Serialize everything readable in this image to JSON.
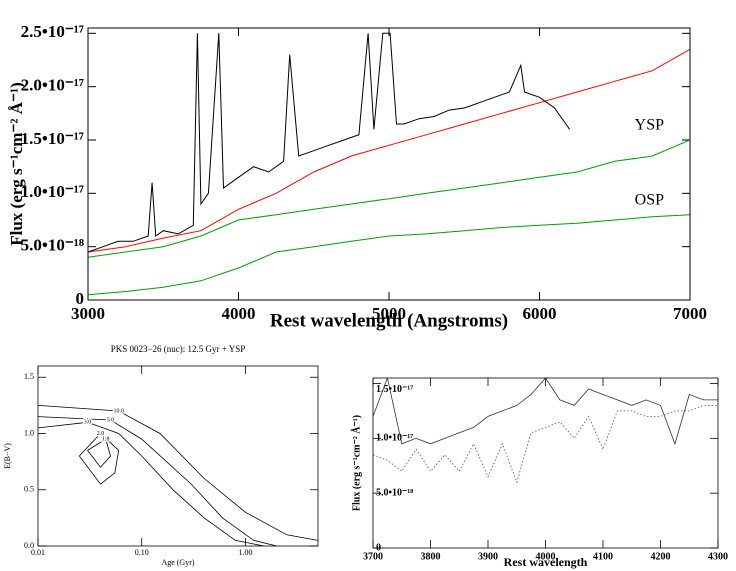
{
  "chart_data": [
    {
      "type": "line",
      "xlabel": "Rest wavelength (Angstroms)",
      "ylabel": "Flux (erg s⁻¹cm⁻² Å⁻¹)",
      "xlim": [
        3000,
        7000
      ],
      "xticks": [
        3000,
        4000,
        5000,
        6000,
        7000
      ],
      "ylim": [
        0,
        2.55e-17
      ],
      "yticks": [
        0,
        {
          "value": 5e-18,
          "label": "5.0•10⁻¹⁸"
        },
        {
          "value": 1e-17,
          "label": "1.0•10⁻¹⁷"
        },
        {
          "value": 1.5e-17,
          "label": "1.5•10⁻¹⁷"
        },
        {
          "value": 2e-17,
          "label": "2.0•10⁻¹⁷"
        },
        {
          "value": 2.5e-17,
          "label": "2.5•10⁻¹⁷"
        }
      ],
      "series_label": "end",
      "series": [
        {
          "color": "#00a000",
          "name": "YSP",
          "x": [
            3000,
            3250,
            3500,
            3750,
            4000,
            4250,
            4500,
            4750,
            5000,
            5250,
            5500,
            5750,
            6000,
            6250,
            6500,
            6750,
            7000
          ],
          "values": [
            4e-18,
            4.5e-18,
            5e-18,
            6e-18,
            7.5e-18,
            8e-18,
            8.5e-18,
            9e-18,
            9.5e-18,
            1e-17,
            1.05e-17,
            1.1e-17,
            1.15e-17,
            1.2e-17,
            1.3e-17,
            1.35e-17,
            1.5e-17
          ]
        },
        {
          "color": "#00a000",
          "name": "OSP",
          "x": [
            3000,
            3250,
            3500,
            3750,
            4000,
            4250,
            4500,
            4750,
            5000,
            5250,
            5500,
            5750,
            6000,
            6250,
            6500,
            6750,
            7000
          ],
          "values": [
            5e-19,
            8e-19,
            1.2e-18,
            1.8e-18,
            3e-18,
            4.5e-18,
            5e-18,
            5.5e-18,
            6e-18,
            6.2e-18,
            6.5e-18,
            6.8e-18,
            7e-18,
            7.2e-18,
            7.5e-18,
            7.8e-18,
            8e-18
          ]
        },
        {
          "color": "#ff0000",
          "x": [
            3000,
            3250,
            3500,
            3750,
            4000,
            4250,
            4500,
            4750,
            5000,
            5250,
            5500,
            5750,
            6000,
            6250,
            6500,
            6750,
            7000
          ],
          "values": [
            4.5e-18,
            5e-18,
            5.8e-18,
            6.5e-18,
            8.5e-18,
            1e-17,
            1.2e-17,
            1.35e-17,
            1.45e-17,
            1.55e-17,
            1.65e-17,
            1.75e-17,
            1.85e-17,
            1.95e-17,
            2.05e-17,
            2.15e-17,
            2.35e-17
          ]
        },
        {
          "color": "#000000",
          "x": [
            3000,
            3100,
            3200,
            3300,
            3400,
            3426,
            3450,
            3500,
            3600,
            3700,
            3727,
            3750,
            3800,
            3869,
            3900,
            4000,
            4100,
            4200,
            4300,
            4340,
            4400,
            4500,
            4600,
            4700,
            4800,
            4861,
            4900,
            4959,
            5007,
            5050,
            5100,
            5200,
            5300,
            5400,
            5500,
            5600,
            5700,
            5800,
            5876,
            5900,
            6000,
            6100,
            6200
          ],
          "values": [
            4.5e-18,
            5e-18,
            5.5e-18,
            5.5e-18,
            6e-18,
            1.1e-17,
            6e-18,
            6.5e-18,
            6.2e-18,
            7e-18,
            2.5e-17,
            9e-18,
            1e-17,
            2.5e-17,
            1.05e-17,
            1.15e-17,
            1.25e-17,
            1.2e-17,
            1.3e-17,
            2.3e-17,
            1.35e-17,
            1.4e-17,
            1.45e-17,
            1.5e-17,
            1.55e-17,
            2.5e-17,
            1.6e-17,
            2.5e-17,
            2.5e-17,
            1.65e-17,
            1.65e-17,
            1.7e-17,
            1.72e-17,
            1.78e-17,
            1.8e-17,
            1.85e-17,
            1.9e-17,
            1.95e-17,
            2.2e-17,
            1.95e-17,
            1.9e-17,
            1.8e-17,
            1.6e-17
          ]
        }
      ]
    },
    {
      "type": "contour",
      "title": "PKS 0023−26 (nuc): 12.5 Gyr + YSP",
      "xlabel": "Age (Gyr)",
      "ylabel": "E(B−V)",
      "xscale": "log",
      "xlim": [
        0.01,
        5
      ],
      "xticks": [
        {
          "value": 0.01,
          "label": "0.01"
        },
        {
          "value": 0.1,
          "label": "0.10"
        },
        {
          "value": 1,
          "label": "1.00"
        }
      ],
      "ylim": [
        0,
        1.6
      ],
      "yticks": [
        {
          "value": 0,
          "label": "0.0"
        },
        0.5,
        {
          "value": 1,
          "label": "1.0"
        },
        1.5
      ],
      "series_label": "inline",
      "series": [
        {
          "color": "#000000",
          "name": "1.8",
          "x": [
            0.03,
            0.045,
            0.05,
            0.04,
            0.03
          ],
          "values": [
            0.85,
            0.95,
            0.8,
            0.7,
            0.85
          ]
        },
        {
          "color": "#000000",
          "name": "2.0",
          "x": [
            0.025,
            0.04,
            0.06,
            0.055,
            0.04,
            0.025
          ],
          "values": [
            0.8,
            1.0,
            0.85,
            0.65,
            0.55,
            0.8
          ]
        },
        {
          "color": "#000000",
          "name": "3.0",
          "x": [
            0.01,
            0.03,
            0.06,
            0.1,
            0.2,
            0.4,
            0.8,
            1.5
          ],
          "values": [
            1.05,
            1.1,
            1.0,
            0.8,
            0.5,
            0.25,
            0.05,
            0.0
          ]
        },
        {
          "color": "#000000",
          "name": "5.0",
          "x": [
            0.01,
            0.05,
            0.1,
            0.3,
            0.6,
            1.2,
            2.0
          ],
          "values": [
            1.15,
            1.12,
            0.95,
            0.55,
            0.25,
            0.05,
            0.0
          ]
        },
        {
          "color": "#000000",
          "name": "10.0",
          "x": [
            0.01,
            0.06,
            0.15,
            0.4,
            1.0,
            2.5,
            5
          ],
          "values": [
            1.25,
            1.2,
            1.0,
            0.6,
            0.3,
            0.1,
            0.05
          ]
        }
      ]
    },
    {
      "type": "line",
      "xlabel": "Rest wavelength",
      "ylabel": "Flux (erg s⁻¹cm⁻² Å⁻¹)",
      "xlim": [
        3700,
        4300
      ],
      "xticks": [
        3700,
        3800,
        3900,
        4000,
        4100,
        4200,
        4300
      ],
      "ylim": [
        0,
        1.55e-17
      ],
      "yticks": [
        0,
        {
          "value": 5e-18,
          "label": "5.0•10⁻¹⁸"
        },
        {
          "value": 1e-17,
          "label": "1.0•10⁻¹⁷"
        },
        {
          "value": 1.5e-17,
          "label": "1.5•10⁻¹⁷"
        }
      ],
      "series": [
        {
          "color": "#555555",
          "dash": "dotted",
          "x": [
            3700,
            3725,
            3750,
            3775,
            3800,
            3825,
            3850,
            3875,
            3900,
            3925,
            3950,
            3975,
            4000,
            4025,
            4050,
            4075,
            4100,
            4125,
            4150,
            4175,
            4200,
            4225,
            4250,
            4275,
            4300
          ],
          "values": [
            8.5e-18,
            8e-18,
            7e-18,
            9e-18,
            7e-18,
            8.5e-18,
            7e-18,
            9.5e-18,
            6.5e-18,
            9.5e-18,
            6e-18,
            1.05e-17,
            1.1e-17,
            1.15e-17,
            1e-17,
            1.2e-17,
            9e-18,
            1.25e-17,
            1.25e-17,
            1.2e-17,
            1.2e-17,
            1.25e-17,
            1.25e-17,
            1.3e-17,
            1.3e-17
          ]
        },
        {
          "color": "#333333",
          "x": [
            3700,
            3725,
            3750,
            3775,
            3800,
            3825,
            3850,
            3875,
            3900,
            3925,
            3950,
            3975,
            4000,
            4025,
            4050,
            4075,
            4100,
            4125,
            4150,
            4175,
            4200,
            4225,
            4250,
            4275,
            4300
          ],
          "values": [
            1.2e-17,
            1.55e-17,
            9.5e-18,
            1e-17,
            9.5e-18,
            1e-17,
            1.05e-17,
            1.1e-17,
            1.2e-17,
            1.25e-17,
            1.3e-17,
            1.4e-17,
            1.55e-17,
            1.35e-17,
            1.3e-17,
            1.45e-17,
            1.4e-17,
            1.35e-17,
            1.3e-17,
            1.35e-17,
            1.3e-17,
            9.5e-18,
            1.4e-17,
            1.35e-17,
            1.35e-17
          ]
        }
      ]
    }
  ]
}
